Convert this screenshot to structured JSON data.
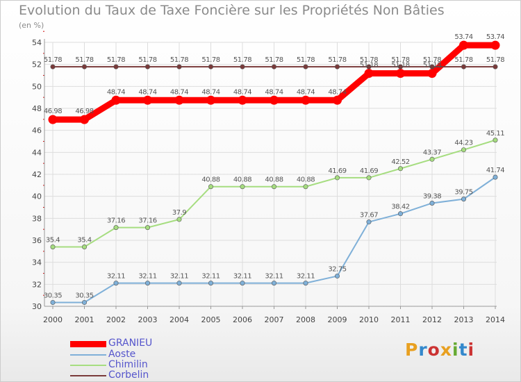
{
  "title": "Evolution du Taux de Taxe Foncière sur les Propriétés Non Bâties",
  "unit_label": "(en %)",
  "logo": {
    "text": "Proxiti",
    "colors": [
      "#e8a020",
      "#3388cc",
      "#cc3333",
      "#e8a020",
      "#66aa33",
      "#3388cc",
      "#cc3333"
    ]
  },
  "chart_data": {
    "type": "line",
    "x": [
      "2000",
      "2001",
      "2002",
      "2003",
      "2004",
      "2005",
      "2006",
      "2007",
      "2008",
      "2009",
      "2010",
      "2011",
      "2012",
      "2013",
      "2014"
    ],
    "ylim": [
      30,
      54
    ],
    "yticks": [
      "30",
      "32",
      "34",
      "36",
      "38",
      "40",
      "42",
      "44",
      "46",
      "48",
      "50",
      "52",
      "54"
    ],
    "grid": true,
    "series": [
      {
        "name": "GRANIEU",
        "color": "#ff0000",
        "width": 9,
        "values": [
          46.98,
          46.98,
          48.74,
          48.74,
          48.74,
          48.74,
          48.74,
          48.74,
          48.74,
          48.74,
          51.18,
          51.18,
          51.18,
          53.74,
          53.74
        ],
        "labels": [
          "46.98",
          "46.98",
          "48.74",
          "48.74",
          "48.74",
          "48.74",
          "48.74",
          "48.74",
          "48.74",
          "48.74",
          "51.18",
          "51.18",
          "51.18",
          "53.74",
          "53.74"
        ]
      },
      {
        "name": "Aoste",
        "color": "#7fb0d8",
        "width": 2,
        "values": [
          30.35,
          30.35,
          32.11,
          32.11,
          32.11,
          32.11,
          32.11,
          32.11,
          32.11,
          32.75,
          37.67,
          38.42,
          39.38,
          39.75,
          41.74
        ],
        "labels": [
          "30.35",
          "30.35",
          "32.11",
          "32.11",
          "32.11",
          "32.11",
          "32.11",
          "32.11",
          "32.11",
          "32.75",
          "37.67",
          "38.42",
          "39.38",
          "39.75",
          "41.74"
        ]
      },
      {
        "name": "Chimilin",
        "color": "#a6dd80",
        "width": 2,
        "values": [
          35.4,
          35.4,
          37.16,
          37.16,
          37.9,
          40.88,
          40.88,
          40.88,
          40.88,
          41.69,
          41.69,
          42.52,
          43.37,
          44.23,
          45.11
        ],
        "labels": [
          "35.4",
          "35.4",
          "37.16",
          "37.16",
          "37.9",
          "40.88",
          "40.88",
          "40.88",
          "40.88",
          "41.69",
          "41.69",
          "42.52",
          "43.37",
          "44.23",
          "45.11"
        ]
      },
      {
        "name": "Corbelin",
        "color": "#7a3a3a",
        "width": 2,
        "values": [
          51.78,
          51.78,
          51.78,
          51.78,
          51.78,
          51.78,
          51.78,
          51.78,
          51.78,
          51.78,
          51.78,
          51.78,
          51.78,
          51.78,
          51.78
        ],
        "labels": [
          "51.78",
          "51.78",
          "51.78",
          "51.78",
          "51.78",
          "51.78",
          "51.78",
          "51.78",
          "51.78",
          "51.78",
          "51.78",
          "51.78",
          "51.78",
          "51.78",
          "51.78"
        ]
      }
    ],
    "legend_position": "bottom-left"
  }
}
